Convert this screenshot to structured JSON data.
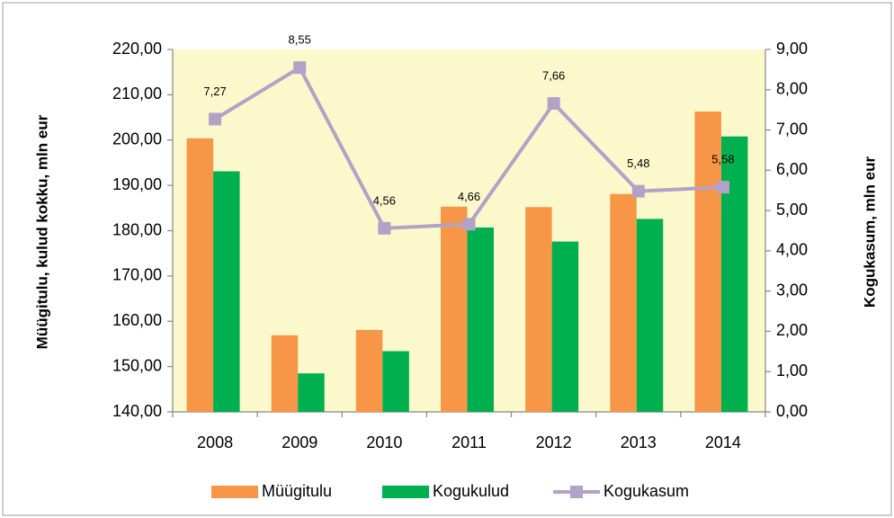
{
  "chart_data": {
    "type": "bar_line",
    "y_label": "Müügitulu, kulud kokku, mln eur",
    "y2_label": "Kogukasum, mln eur",
    "categories": [
      "2008",
      "2009",
      "2010",
      "2011",
      "2012",
      "2013",
      "2014"
    ],
    "series": [
      {
        "name": "Müügitulu",
        "type": "bar",
        "color": "#f79646",
        "values": [
          200.4,
          156.9,
          158.1,
          185.3,
          185.2,
          188.1,
          206.3
        ]
      },
      {
        "name": "Kogukulud",
        "type": "bar",
        "color": "#00b050",
        "values": [
          193.1,
          148.5,
          153.4,
          180.7,
          177.6,
          182.6,
          200.8
        ]
      },
      {
        "name": "Kogukasum",
        "type": "line",
        "axis": "y2",
        "color": "#b3a2c7",
        "values": [
          7.27,
          8.55,
          4.56,
          4.66,
          7.66,
          5.48,
          5.58
        ],
        "value_labels": [
          "7,27",
          "8,55",
          "4,56",
          "4,66",
          "7,66",
          "5,48",
          "5,58"
        ]
      }
    ],
    "ylim": [
      140,
      220
    ],
    "yticks": [
      {
        "value": 140,
        "label": "140,00"
      },
      {
        "value": 150,
        "label": "150,00"
      },
      {
        "value": 160,
        "label": "160,00"
      },
      {
        "value": 170,
        "label": "170,00"
      },
      {
        "value": 180,
        "label": "180,00"
      },
      {
        "value": 190,
        "label": "190,00"
      },
      {
        "value": 200,
        "label": "200,00"
      },
      {
        "value": 210,
        "label": "210,00"
      },
      {
        "value": 220,
        "label": "220,00"
      }
    ],
    "y2lim": [
      0,
      9
    ],
    "y2ticks": [
      {
        "value": 0,
        "label": "0,00"
      },
      {
        "value": 1,
        "label": "1,00"
      },
      {
        "value": 2,
        "label": "2,00"
      },
      {
        "value": 3,
        "label": "3,00"
      },
      {
        "value": 4,
        "label": "4,00"
      },
      {
        "value": 5,
        "label": "5,00"
      },
      {
        "value": 6,
        "label": "6,00"
      },
      {
        "value": 7,
        "label": "7,00"
      },
      {
        "value": 8,
        "label": "8,00"
      },
      {
        "value": 9,
        "label": "9,00"
      }
    ],
    "plot_background": "#fbf9cc",
    "legend": "bottom"
  }
}
